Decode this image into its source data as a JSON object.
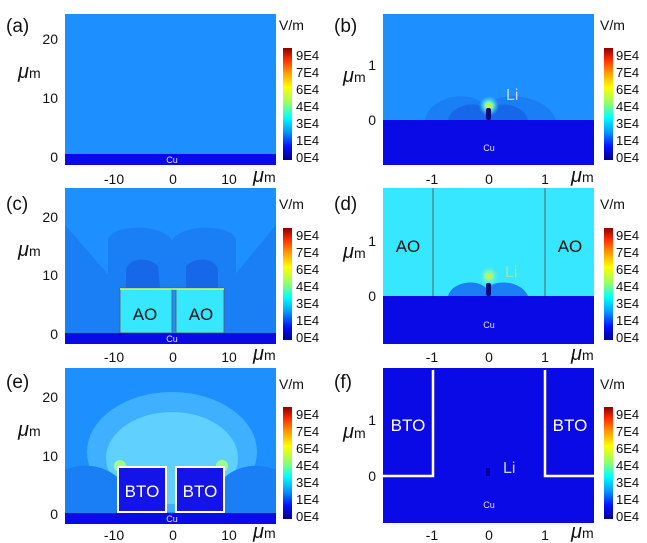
{
  "panels": {
    "a": {
      "label": "(a)",
      "y_ticks": [
        "20",
        "10",
        "0"
      ],
      "x_ticks": [
        "-10",
        "0",
        "10"
      ],
      "x_unit": "m",
      "y_unit": "m",
      "substrate": "Cu"
    },
    "b": {
      "label": "(b)",
      "y_ticks": [
        "1",
        "0"
      ],
      "x_ticks": [
        "-1",
        "0",
        "1"
      ],
      "x_unit": "m",
      "y_unit": "m",
      "substrate": "Cu",
      "deposit": "Li"
    },
    "c": {
      "label": "(c)",
      "y_ticks": [
        "20",
        "10",
        "0"
      ],
      "x_ticks": [
        "-10",
        "0",
        "10"
      ],
      "x_unit": "m",
      "y_unit": "m",
      "substrate": "Cu",
      "block_left": "AO",
      "block_right": "AO"
    },
    "d": {
      "label": "(d)",
      "y_ticks": [
        "1",
        "0"
      ],
      "x_ticks": [
        "-1",
        "0",
        "1"
      ],
      "x_unit": "m",
      "y_unit": "m",
      "substrate": "Cu",
      "deposit": "Li",
      "block_left": "AO",
      "block_right": "AO"
    },
    "e": {
      "label": "(e)",
      "y_ticks": [
        "20",
        "10",
        "0"
      ],
      "x_ticks": [
        "-10",
        "0",
        "10"
      ],
      "x_unit": "m",
      "y_unit": "m",
      "substrate": "Cu",
      "block_left": "BTO",
      "block_right": "BTO"
    },
    "f": {
      "label": "(f)",
      "y_ticks": [
        "1",
        "0"
      ],
      "x_ticks": [
        "-1",
        "0",
        "1"
      ],
      "x_unit": "m",
      "y_unit": "m",
      "substrate": "Cu",
      "deposit": "Li",
      "block_left": "BTO",
      "block_right": "BTO"
    }
  },
  "mu_symbol": "μ",
  "colorbar": {
    "unit": "V/m",
    "ticks": [
      "9E4",
      "7E4",
      "6E4",
      "4E4",
      "3E4",
      "1E4",
      "0E4"
    ],
    "colors": [
      "#7f0000",
      "#ff2a00",
      "#ff9a00",
      "#ffff00",
      "#8cff6e",
      "#00ffff",
      "#0099ff",
      "#0011ff",
      "#00007f"
    ]
  }
}
